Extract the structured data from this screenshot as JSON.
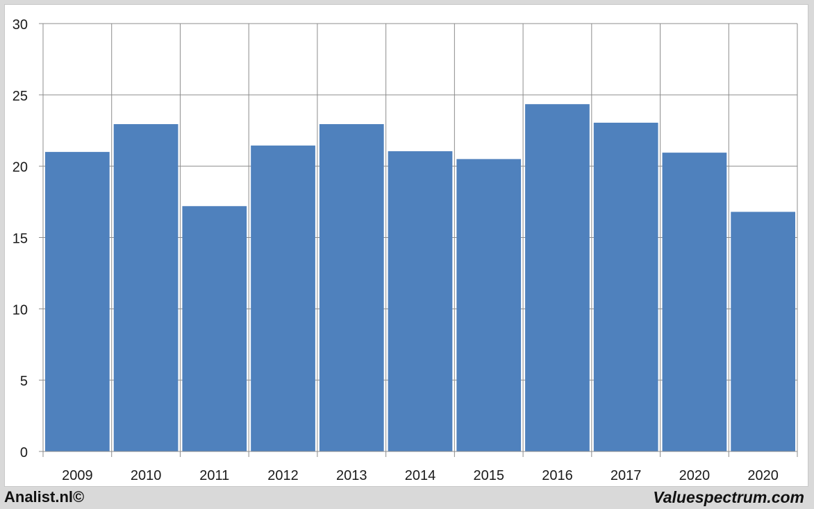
{
  "chart_data": {
    "type": "bar",
    "categories": [
      "2009",
      "2010",
      "2011",
      "2012",
      "2013",
      "2014",
      "2015",
      "2016",
      "2017",
      "2020",
      "2020"
    ],
    "values": [
      21.0,
      22.95,
      17.2,
      21.45,
      22.95,
      21.05,
      20.5,
      24.35,
      23.05,
      20.95,
      16.8
    ],
    "title": "",
    "xlabel": "",
    "ylabel": "",
    "ylim": [
      0,
      30
    ],
    "yticks": [
      "0",
      "5",
      "10",
      "15",
      "20",
      "25",
      "30"
    ],
    "grid": true,
    "bar_color": "#4f81bd",
    "grid_color": "#8c8c8c",
    "legend": "none"
  },
  "footer": {
    "left_credit": "Analist.nl©",
    "right_credit": "Valuespectrum.com"
  }
}
